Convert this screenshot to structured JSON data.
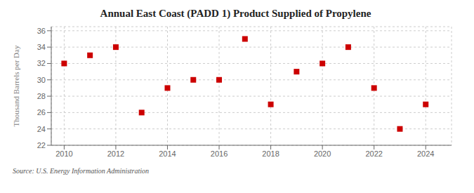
{
  "chart_data": {
    "type": "scatter",
    "title": "Annual East Coast (PADD 1) Product Supplied of Propylene",
    "y_label": "Thousand Barrels per Day",
    "annotation": "Source: U.S. Energy Information Administration",
    "x": [
      2010,
      2011,
      2012,
      2013,
      2014,
      2015,
      2016,
      2017,
      2018,
      2019,
      2020,
      2021,
      2022,
      2023,
      2024
    ],
    "values": [
      32.0,
      33.0,
      34.0,
      26.0,
      29.0,
      30.0,
      30.0,
      35.0,
      27.0,
      31.0,
      32.0,
      34.0,
      29.0,
      24.0,
      27.0
    ],
    "color": "#cc0000",
    "marker": "square",
    "xlim": [
      2009.5,
      2025
    ],
    "ylim": [
      22,
      36.5
    ],
    "xticks": [
      2010,
      2012,
      2014,
      2016,
      2018,
      2020,
      2022,
      2024
    ],
    "yticks": [
      22,
      24,
      26,
      28,
      30,
      32,
      34,
      36
    ],
    "grid": true
  }
}
